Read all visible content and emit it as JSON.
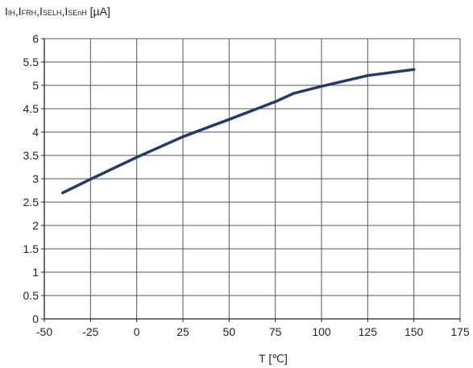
{
  "chart_data": {
    "type": "line",
    "ylabel_parts": [
      {
        "t": "I"
      },
      {
        "t": "IH",
        "sub": true
      },
      {
        "t": ",I"
      },
      {
        "t": "FRH",
        "sub": true
      },
      {
        "t": ",I"
      },
      {
        "t": "SELH",
        "sub": true
      },
      {
        "t": ",I"
      },
      {
        "t": "SEnH",
        "sub": true
      },
      {
        "t": " [µA]"
      }
    ],
    "xlabel": "T [℃]",
    "xlim": [
      -50,
      175
    ],
    "ylim": [
      0,
      6
    ],
    "xticks": [
      -50,
      -25,
      0,
      25,
      50,
      75,
      100,
      125,
      150,
      175
    ],
    "xtick_labels": [
      "-50",
      "-25",
      "0",
      "25",
      "50",
      "75",
      "100",
      "125",
      "150",
      "175"
    ],
    "yticks": [
      0,
      0.5,
      1,
      1.5,
      2,
      2.5,
      3,
      3.5,
      4,
      4.5,
      5,
      5.5,
      6
    ],
    "ytick_labels": [
      "0",
      "0.5",
      "1",
      "1.5",
      "2",
      "2.5",
      "3",
      "3.5",
      "4",
      "4.5",
      "5",
      "5.5",
      "6"
    ],
    "grid": true,
    "series": [
      {
        "color": "#233a6b",
        "x": [
          -40,
          -25,
          0,
          25,
          50,
          75,
          85,
          100,
          125,
          150
        ],
        "y": [
          2.7,
          2.99,
          3.46,
          3.9,
          4.27,
          4.65,
          4.83,
          4.98,
          5.21,
          5.34
        ]
      }
    ]
  }
}
